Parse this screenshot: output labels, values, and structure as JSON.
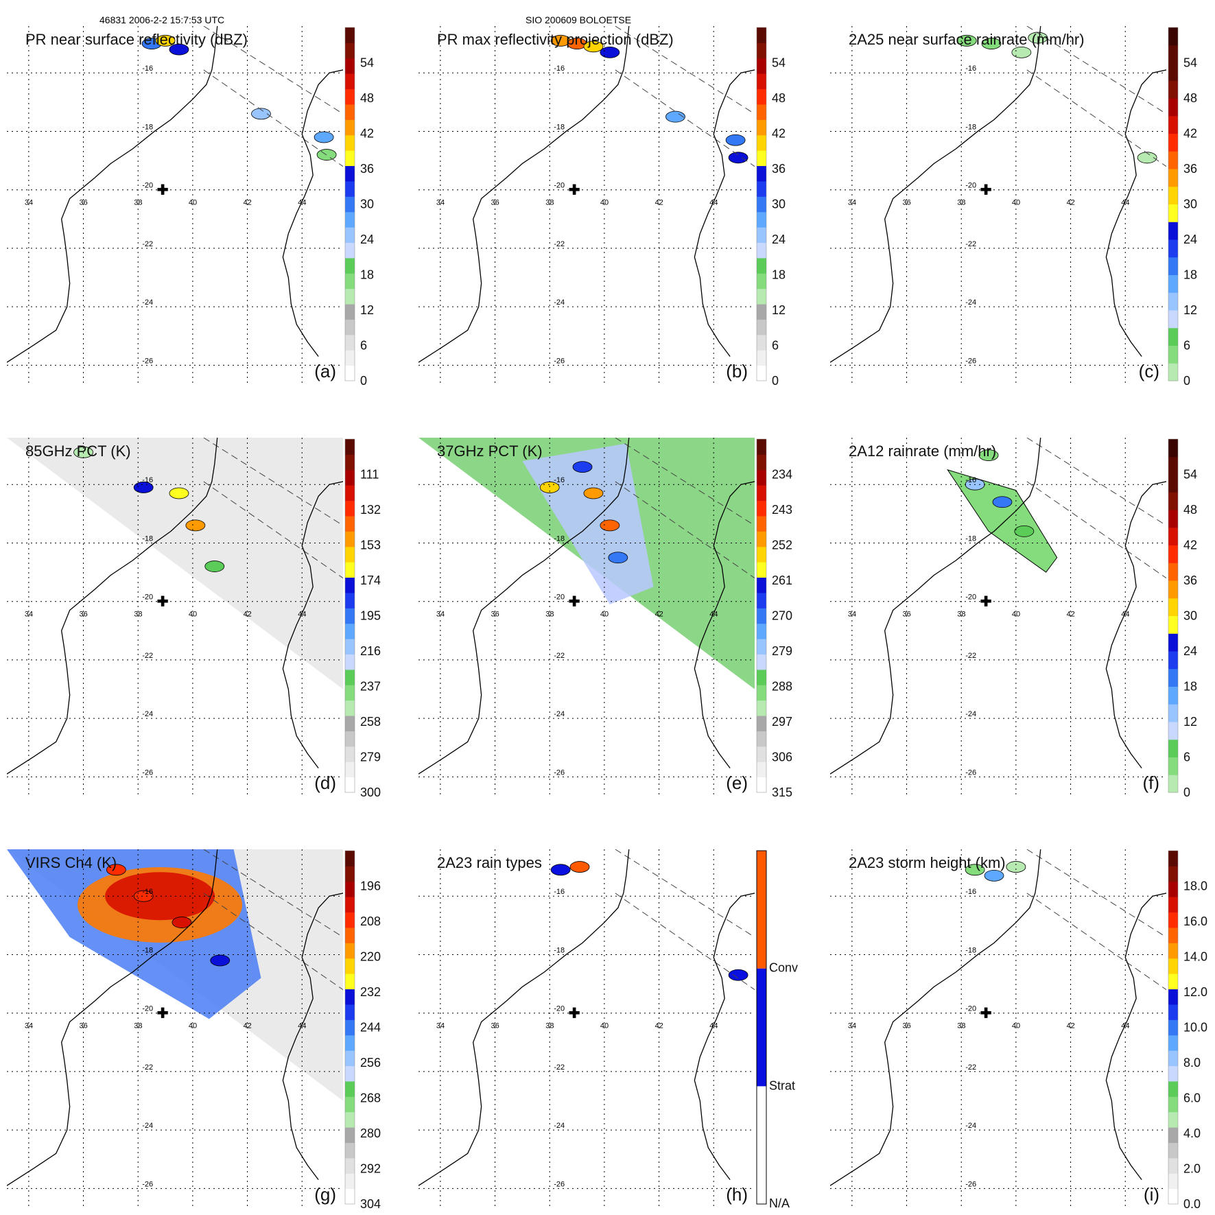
{
  "header": {
    "orbit_info": "46831 2006-2-2 15:7:53 UTC",
    "storm_info": "SIO 200609 BOLOETSE"
  },
  "map": {
    "lat_labels": [
      "-16",
      "-18",
      "-20",
      "-22",
      "-24",
      "-26"
    ],
    "lon_labels": [
      "34",
      "36",
      "38",
      "40",
      "42",
      "44"
    ],
    "lat_values": [
      -16,
      -18,
      -20,
      -22,
      -24,
      -26
    ],
    "lon_values": [
      34,
      36,
      38,
      40,
      42,
      44
    ],
    "lon_range": [
      33.2,
      45.5
    ],
    "lat_range": [
      -26.6,
      -14.4
    ],
    "storm_center": {
      "lon": 38.9,
      "lat": -20.0
    },
    "storm_center_symbol": "✚"
  },
  "colors": {
    "gray_scale": [
      "#ffffff",
      "#f0f0f0",
      "#e0e0e0",
      "#c8c8c8",
      "#a8a8a8"
    ],
    "green": [
      "#b6eab0",
      "#84dc7c",
      "#5ccc58"
    ],
    "blue": [
      "#c8d8ff",
      "#98c4ff",
      "#5ea8ff",
      "#3478f6",
      "#1c3cf0",
      "#0a10d8"
    ],
    "warm": [
      "#ffff20",
      "#ffd400",
      "#ff9a00",
      "#ff6400",
      "#ff2c00",
      "#d81000",
      "#a80000",
      "#801000",
      "#5a0a00"
    ],
    "rain_types": {
      "conv": "#ff5a00",
      "strat": "#0a10e0",
      "na": "#ffffff"
    },
    "swath_line": "#444444",
    "coast_line": "#000000"
  },
  "chart_data": [
    {
      "panel": "a",
      "type": "heatmap",
      "title": "PR near surface reflectivity (dBZ)",
      "label": "(a)",
      "colorbar": {
        "ticks": [
          "0",
          "6",
          "12",
          "18",
          "24",
          "30",
          "36",
          "42",
          "48",
          "54"
        ],
        "range": [
          0,
          60
        ],
        "style": "dbz"
      },
      "features": [
        {
          "lon": 38.5,
          "lat": -15.0,
          "value": 30
        },
        {
          "lon": 39.0,
          "lat": -14.9,
          "value": 40
        },
        {
          "lon": 39.5,
          "lat": -15.2,
          "value": 36
        },
        {
          "lon": 44.8,
          "lat": -18.2,
          "value": 28
        },
        {
          "lon": 44.9,
          "lat": -18.8,
          "value": 18
        },
        {
          "lon": 42.5,
          "lat": -17.4,
          "value": 26
        }
      ]
    },
    {
      "panel": "b",
      "type": "heatmap",
      "title": "PR max reflectivity projection (dBZ)",
      "label": "(b)",
      "colorbar": {
        "ticks": [
          "0",
          "6",
          "12",
          "18",
          "24",
          "30",
          "36",
          "42",
          "48",
          "54"
        ],
        "range": [
          0,
          60
        ],
        "style": "dbz"
      },
      "features": [
        {
          "lon": 38.4,
          "lat": -14.9,
          "value": 42
        },
        {
          "lon": 39.0,
          "lat": -15.0,
          "value": 46
        },
        {
          "lon": 39.6,
          "lat": -15.1,
          "value": 40
        },
        {
          "lon": 40.2,
          "lat": -15.3,
          "value": 34
        },
        {
          "lon": 44.8,
          "lat": -18.3,
          "value": 30
        },
        {
          "lon": 44.9,
          "lat": -18.9,
          "value": 34
        },
        {
          "lon": 42.6,
          "lat": -17.5,
          "value": 28
        }
      ]
    },
    {
      "panel": "c",
      "type": "heatmap",
      "title": "2A25 near surface rainrate (mm/hr)",
      "label": "(c)",
      "colorbar": {
        "ticks": [
          "0",
          "6",
          "12",
          "18",
          "24",
          "30",
          "36",
          "42",
          "48",
          "54"
        ],
        "range": [
          0,
          60
        ],
        "style": "rain"
      },
      "features": [
        {
          "lon": 38.2,
          "lat": -14.9,
          "value": 3
        },
        {
          "lon": 39.1,
          "lat": -15.0,
          "value": 4
        },
        {
          "lon": 40.2,
          "lat": -15.3,
          "value": 2
        },
        {
          "lon": 40.8,
          "lat": -14.8,
          "value": 2
        },
        {
          "lon": 44.8,
          "lat": -18.9,
          "value": 2
        }
      ]
    },
    {
      "panel": "d",
      "type": "heatmap",
      "title": "85GHz PCT (K)",
      "label": "(d)",
      "colorbar": {
        "ticks": [
          "300",
          "279",
          "258",
          "237",
          "216",
          "195",
          "174",
          "153",
          "132",
          "111"
        ],
        "range": [
          300,
          90
        ],
        "style": "pct"
      },
      "features": [
        {
          "lon": 36.0,
          "lat": -14.9,
          "value": 250
        },
        {
          "lon": 38.2,
          "lat": -16.1,
          "value": 180
        },
        {
          "lon": 39.5,
          "lat": -16.3,
          "value": 170
        },
        {
          "lon": 40.1,
          "lat": -17.4,
          "value": 150
        },
        {
          "lon": 40.8,
          "lat": -18.8,
          "value": 230
        }
      ]
    },
    {
      "panel": "e",
      "type": "heatmap",
      "title": "37GHz PCT (K)",
      "label": "(e)",
      "colorbar": {
        "ticks": [
          "315",
          "306",
          "297",
          "288",
          "279",
          "270",
          "261",
          "252",
          "243",
          "234"
        ],
        "range": [
          315,
          225
        ],
        "style": "pct"
      },
      "features": [
        {
          "lon": 38.0,
          "lat": -16.1,
          "value": 255
        },
        {
          "lon": 39.6,
          "lat": -16.3,
          "value": 252
        },
        {
          "lon": 40.2,
          "lat": -17.4,
          "value": 248
        },
        {
          "lon": 39.2,
          "lat": -15.4,
          "value": 268
        },
        {
          "lon": 40.5,
          "lat": -18.5,
          "value": 270
        }
      ]
    },
    {
      "panel": "f",
      "type": "heatmap",
      "title": "2A12 rainrate (mm/hr)",
      "label": "(f)",
      "colorbar": {
        "ticks": [
          "0",
          "6",
          "12",
          "18",
          "24",
          "30",
          "36",
          "42",
          "48",
          "54"
        ],
        "range": [
          0,
          60
        ],
        "style": "rain"
      },
      "features": [
        {
          "lon": 38.5,
          "lat": -16.0,
          "value": 14
        },
        {
          "lon": 39.5,
          "lat": -16.6,
          "value": 20
        },
        {
          "lon": 40.3,
          "lat": -17.6,
          "value": 8
        },
        {
          "lon": 39.0,
          "lat": -15.0,
          "value": 5
        }
      ]
    },
    {
      "panel": "g",
      "type": "heatmap",
      "title": "VIRS Ch4 (K)",
      "label": "(g)",
      "colorbar": {
        "ticks": [
          "304",
          "292",
          "280",
          "268",
          "256",
          "244",
          "232",
          "220",
          "208",
          "196"
        ],
        "range": [
          304,
          184
        ],
        "style": "pct"
      },
      "features": [
        {
          "lon": 38.2,
          "lat": -16.0,
          "value": 205
        },
        {
          "lon": 39.6,
          "lat": -16.9,
          "value": 200
        },
        {
          "lon": 37.2,
          "lat": -15.1,
          "value": 210
        },
        {
          "lon": 41.0,
          "lat": -18.2,
          "value": 235
        }
      ]
    },
    {
      "panel": "h",
      "type": "heatmap",
      "title": "2A23 rain types",
      "label": "(h)",
      "colorbar": {
        "categories": [
          "N/A",
          "Strat",
          "Conv"
        ],
        "style": "types"
      },
      "features": [
        {
          "lon": 38.4,
          "lat": -15.1,
          "type": "Strat"
        },
        {
          "lon": 39.1,
          "lat": -15.0,
          "type": "Conv"
        },
        {
          "lon": 44.9,
          "lat": -18.7,
          "type": "Strat"
        }
      ]
    },
    {
      "panel": "i",
      "type": "heatmap",
      "title": "2A23 storm height (km)",
      "label": "(i)",
      "colorbar": {
        "ticks": [
          "0.0",
          "2.0",
          "4.0",
          "6.0",
          "8.0",
          "10.0",
          "12.0",
          "14.0",
          "16.0",
          "18.0"
        ],
        "range": [
          0,
          20
        ],
        "style": "dbz"
      },
      "features": [
        {
          "lon": 38.5,
          "lat": -15.1,
          "value": 6
        },
        {
          "lon": 39.2,
          "lat": -15.3,
          "value": 9
        },
        {
          "lon": 40.0,
          "lat": -15.0,
          "value": 5
        }
      ]
    }
  ]
}
